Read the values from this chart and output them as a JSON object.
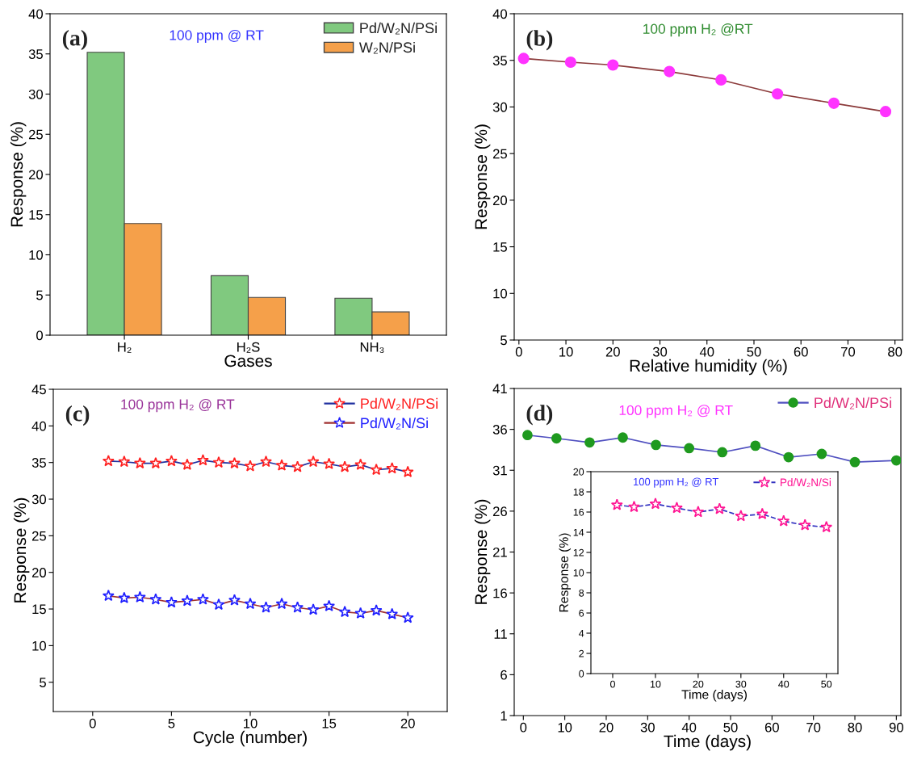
{
  "chart_data": [
    {
      "type": "bar",
      "categories": [
        "H₂",
        "H₂S",
        "NH₃"
      ],
      "xlabel": "Gases",
      "ylabel": "Response (%)",
      "ylim": [
        0,
        40
      ],
      "yticks": [
        0,
        5,
        10,
        15,
        20,
        25,
        30,
        35,
        40
      ],
      "legend": "top right",
      "annotations": [
        "(a)",
        "100 ppm @ RT"
      ],
      "series": [
        {
          "name": "Pd/W₂N/PSi",
          "color": "#80c97f",
          "values": [
            35.2,
            7.4,
            4.6
          ]
        },
        {
          "name": "W₂N/PSi",
          "color": "#f5a04a",
          "values": [
            13.9,
            4.7,
            2.9
          ]
        }
      ]
    },
    {
      "type": "line",
      "xlabel": "Relative humidity (%)",
      "ylabel": "Response (%)",
      "xlim": [
        -1,
        81.6
      ],
      "xticks": [
        0,
        10,
        20,
        30,
        40,
        50,
        60,
        70,
        80
      ],
      "ylim": [
        5,
        40
      ],
      "yticks": [
        5,
        10,
        15,
        20,
        25,
        30,
        35,
        40
      ],
      "annotations": [
        "(b)",
        "100 ppm H₂ @RT"
      ],
      "series": [
        {
          "color": "#ff33ff",
          "marker": "circle",
          "line_style": "solid",
          "x": [
            1,
            11,
            20,
            32,
            43,
            55,
            67,
            78
          ],
          "values": [
            35.2,
            34.8,
            34.5,
            33.8,
            32.9,
            31.4,
            30.4,
            29.5
          ]
        }
      ]
    },
    {
      "type": "line",
      "xlabel": "Cycle (number)",
      "ylabel": "Response (%)",
      "xlim": [
        -2.5,
        22.5
      ],
      "xticks": [
        0,
        5,
        10,
        15,
        20
      ],
      "ylim": [
        1,
        45
      ],
      "yticks": [
        5,
        10,
        15,
        20,
        25,
        30,
        35,
        40,
        45
      ],
      "legend": "top right",
      "annotations": [
        "(c)",
        "100 ppm H₂ @ RT"
      ],
      "series": [
        {
          "name": "Pd/W₂N/PSi",
          "color": "#ff2020",
          "marker": "star",
          "line_style": "solid",
          "x": [
            1,
            2,
            3,
            4,
            5,
            6,
            7,
            8,
            9,
            10,
            11,
            12,
            13,
            14,
            15,
            16,
            17,
            18,
            19,
            20
          ],
          "values": [
            35.2,
            35.1,
            34.9,
            34.9,
            35.2,
            34.7,
            35.3,
            35.0,
            34.9,
            34.5,
            35.1,
            34.6,
            34.4,
            35.1,
            34.8,
            34.4,
            34.7,
            34.0,
            34.2,
            33.7
          ]
        },
        {
          "name": "Pd/W₂N/Si",
          "color": "#2020ff",
          "marker": "star",
          "line_style": "solid",
          "x": [
            1,
            2,
            3,
            4,
            5,
            6,
            7,
            8,
            9,
            10,
            11,
            12,
            13,
            14,
            15,
            16,
            17,
            18,
            19,
            20
          ],
          "values": [
            16.8,
            16.5,
            16.6,
            16.3,
            15.9,
            16.1,
            16.3,
            15.6,
            16.2,
            15.7,
            15.2,
            15.7,
            15.2,
            14.9,
            15.4,
            14.6,
            14.4,
            14.8,
            14.3,
            13.8
          ]
        }
      ]
    },
    {
      "type": "line",
      "xlabel": "Time (days)",
      "ylabel": "Response (%)",
      "xlim": [
        -2.2,
        91.1
      ],
      "xticks": [
        0,
        10,
        20,
        30,
        40,
        50,
        60,
        70,
        80,
        90
      ],
      "ylim": [
        1,
        41
      ],
      "yticks": [
        1,
        6,
        11,
        16,
        21,
        26,
        31,
        36,
        41
      ],
      "legend": "top right",
      "annotations": [
        "(d)",
        "100 ppm H₂ @ RT"
      ],
      "series": [
        {
          "name": "Pd/W₂N/PSi",
          "color": "#1f9a1f",
          "marker": "circle",
          "line_style": "solid",
          "x": [
            1,
            8,
            16,
            24,
            32,
            40,
            48,
            56,
            64,
            72,
            80,
            90
          ],
          "values": [
            35.3,
            34.9,
            34.4,
            35.0,
            34.1,
            33.7,
            33.2,
            34.0,
            32.6,
            33.0,
            32.0,
            32.2
          ]
        }
      ]
    },
    {
      "type": "line",
      "xlabel": "Time (days)",
      "ylabel": "Response (%)",
      "xlim": [
        -5.1,
        52.7
      ],
      "xticks": [
        0,
        10,
        20,
        30,
        40,
        50
      ],
      "ylim": [
        0,
        20
      ],
      "yticks": [
        0,
        2,
        4,
        6,
        8,
        10,
        12,
        14,
        16,
        18,
        20
      ],
      "legend": "top right",
      "annotations": [
        "100 ppm H₂ @ RT"
      ],
      "series": [
        {
          "name": "Pd/W₂N/Si",
          "color": "#ff1493",
          "marker": "star",
          "line_style": "dashed",
          "x": [
            1,
            5,
            10,
            15,
            20,
            25,
            30,
            35,
            40,
            45,
            50
          ],
          "values": [
            16.7,
            16.5,
            16.8,
            16.4,
            16.0,
            16.3,
            15.6,
            15.8,
            15.1,
            14.7,
            14.5
          ]
        }
      ]
    }
  ]
}
